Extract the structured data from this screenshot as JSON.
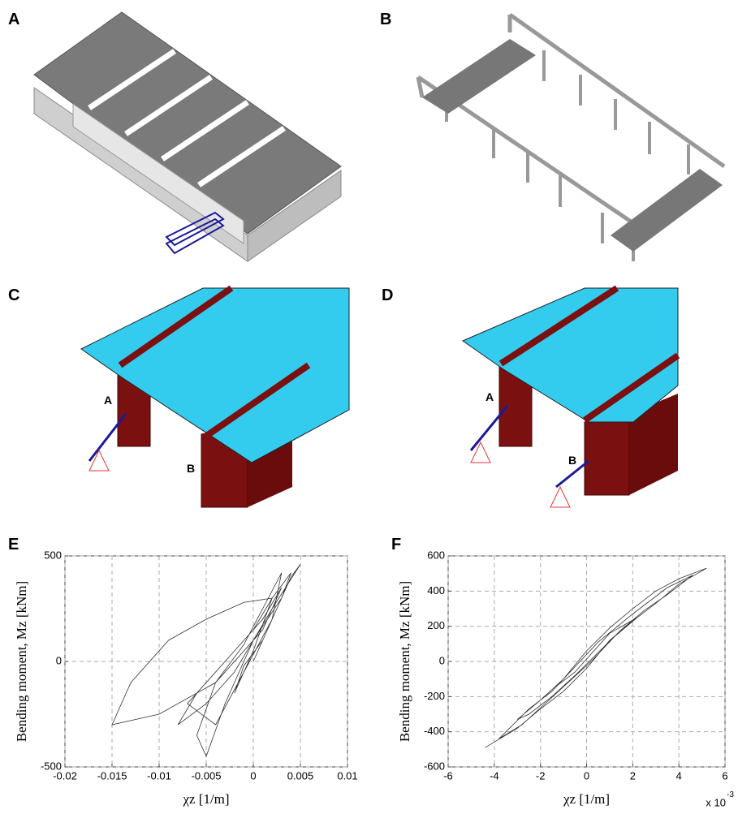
{
  "panels": [
    "A",
    "B",
    "C",
    "D"
  ],
  "panel_c_labels": [
    "A",
    "B"
  ],
  "panel_d_labels": [
    "A",
    "B"
  ],
  "chart_data": [
    {
      "type": "line",
      "label": "E",
      "xlabel": "χz [1/m]",
      "ylabel": "Bending moment, Mz [kNm]",
      "xlim": [
        -0.02,
        0.01
      ],
      "xticks": [
        -0.02,
        -0.015,
        -0.01,
        -0.005,
        0,
        0.005,
        0.01
      ],
      "ylim": [
        -500,
        500
      ],
      "yticks": [
        -500,
        0,
        500
      ],
      "grid": true,
      "series": [
        {
          "color": "#333333",
          "x": [
            0,
            0.002,
            0.004,
            0.005,
            0.002,
            -0.002,
            -0.005,
            -0.008,
            -0.006,
            -0.002,
            0.001,
            0.003,
            0.001,
            -0.004,
            -0.01,
            -0.015,
            -0.013,
            -0.009,
            -0.005,
            -0.001,
            0.002,
            0.004,
            0.003,
            0,
            -0.003,
            -0.005,
            -0.006,
            -0.004,
            -0.001,
            0.001,
            0.003,
            0.002,
            -0.001,
            -0.004,
            -0.007,
            -0.003,
            0,
            0.002,
            0,
            -0.002,
            -0.001,
            0.001
          ],
          "values": [
            0,
            200,
            400,
            460,
            250,
            -50,
            -200,
            -300,
            -150,
            50,
            200,
            350,
            150,
            -100,
            -250,
            -300,
            -100,
            100,
            200,
            280,
            300,
            420,
            300,
            100,
            -200,
            -450,
            -350,
            -100,
            80,
            250,
            420,
            200,
            -50,
            -300,
            -200,
            0,
            150,
            300,
            50,
            -150,
            -20,
            100
          ]
        }
      ]
    },
    {
      "type": "line",
      "label": "F",
      "xlabel": "χz [1/m]",
      "ylabel": "Bending moment, Mz [kNm]",
      "multiplier": "x 10",
      "multiplier_exp": "-3",
      "xlim": [
        -6,
        6
      ],
      "xticks": [
        -6,
        -4,
        -2,
        0,
        2,
        4,
        6
      ],
      "ylim": [
        -600,
        600
      ],
      "yticks": [
        -600,
        -400,
        -200,
        0,
        200,
        400,
        600
      ],
      "grid": true,
      "series": [
        {
          "color": "#333333",
          "x": [
            -4.4,
            -3,
            -2,
            -1,
            0,
            1,
            2,
            3,
            4,
            5.2,
            4,
            3,
            2,
            1,
            0,
            -1,
            -2,
            -3,
            -2.5,
            -1.5,
            -0.5,
            0.5,
            1.5,
            2.5,
            3.5,
            4.6,
            3.5,
            2,
            0.5,
            -0.5,
            -1.5,
            -2.5,
            -3.8,
            -2.8,
            -1.8,
            -0.8,
            0.2,
            1.2,
            2.2,
            1,
            -0.5,
            -1.2
          ],
          "values": [
            -490,
            -380,
            -270,
            -170,
            -40,
            120,
            230,
            330,
            440,
            530,
            470,
            400,
            300,
            190,
            60,
            -100,
            -220,
            -330,
            -300,
            -200,
            -80,
            50,
            180,
            290,
            380,
            490,
            420,
            270,
            110,
            -30,
            -170,
            -270,
            -440,
            -360,
            -240,
            -120,
            0,
            140,
            250,
            160,
            -60,
            -130
          ]
        }
      ]
    }
  ]
}
